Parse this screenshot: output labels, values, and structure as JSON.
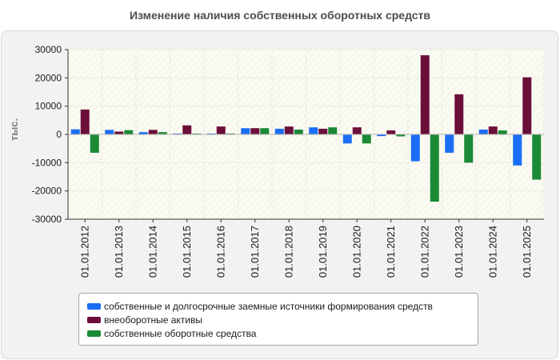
{
  "chart_data": {
    "type": "bar",
    "title": "Изменение наличия собственных оборотных средств",
    "ylabel": "тыс.",
    "xlabel": "",
    "ylim": [
      -30000,
      30000
    ],
    "yticks": [
      30000,
      20000,
      10000,
      0,
      -10000,
      -20000,
      -30000
    ],
    "categories": [
      "01.01.2012",
      "01.01.2013",
      "01.01.2014",
      "01.01.2015",
      "01.01.2016",
      "01.01.2017",
      "01.01.2018",
      "01.01.2019",
      "01.01.2020",
      "01.01.2021",
      "01.01.2022",
      "01.01.2023",
      "01.01.2024",
      "01.01.2025"
    ],
    "series": [
      {
        "name": "собственные и долгосрочные заемные источники формирования средств",
        "color": "#1a6ef5",
        "values": [
          1800,
          1600,
          800,
          300,
          300,
          2200,
          2000,
          2500,
          -3200,
          -600,
          -9500,
          -6500,
          1700,
          -11000
        ]
      },
      {
        "name": "внеоборотные активы",
        "color": "#6b0f3a",
        "values": [
          8800,
          1000,
          1600,
          3200,
          2800,
          2200,
          2800,
          2000,
          2500,
          1400,
          28000,
          14200,
          2800,
          20200
        ]
      },
      {
        "name": "собственные оборотные средства",
        "color": "#1a8a35",
        "values": [
          -6500,
          1500,
          800,
          300,
          300,
          2200,
          1700,
          2500,
          -3200,
          -700,
          -23800,
          -10000,
          1400,
          -16000
        ]
      }
    ],
    "grid": true,
    "legend": "bottom"
  }
}
